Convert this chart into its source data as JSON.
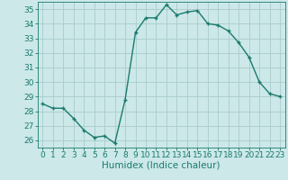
{
  "x": [
    0,
    1,
    2,
    3,
    4,
    5,
    6,
    7,
    8,
    9,
    10,
    11,
    12,
    13,
    14,
    15,
    16,
    17,
    18,
    19,
    20,
    21,
    22,
    23
  ],
  "y": [
    28.5,
    28.2,
    28.2,
    27.5,
    26.7,
    26.2,
    26.3,
    25.8,
    28.8,
    33.4,
    34.4,
    34.4,
    35.3,
    34.6,
    34.8,
    34.9,
    34.0,
    33.9,
    33.5,
    32.7,
    31.7,
    30.0,
    29.2,
    29.0
  ],
  "line_color": "#1a7a6e",
  "marker": "+",
  "bg_color": "#cce8e8",
  "grid_color": "#aacccc",
  "xlabel": "Humidex (Indice chaleur)",
  "xlim": [
    -0.5,
    23.5
  ],
  "ylim": [
    25.5,
    35.5
  ],
  "yticks": [
    26,
    27,
    28,
    29,
    30,
    31,
    32,
    33,
    34,
    35
  ],
  "xticks": [
    0,
    1,
    2,
    3,
    4,
    5,
    6,
    7,
    8,
    9,
    10,
    11,
    12,
    13,
    14,
    15,
    16,
    17,
    18,
    19,
    20,
    21,
    22,
    23
  ],
  "tick_fontsize": 6.5,
  "xlabel_fontsize": 7.5,
  "linewidth": 1.0,
  "markersize": 3.5,
  "markeredgewidth": 1.0
}
